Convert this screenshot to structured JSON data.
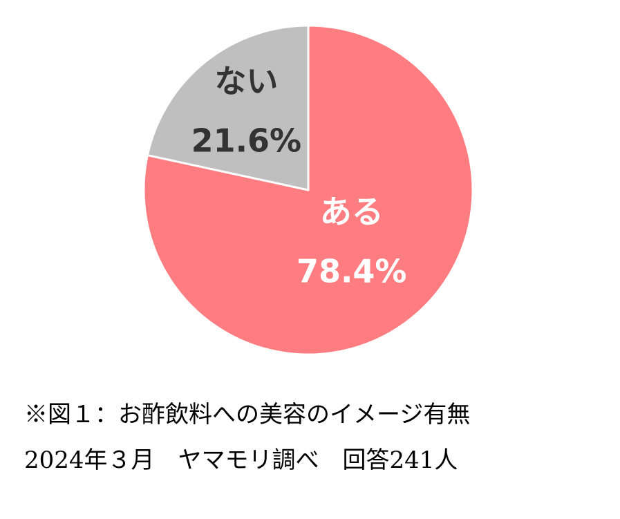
{
  "chart_data": {
    "type": "pie",
    "categories": [
      "ある",
      "ない"
    ],
    "values": [
      78.4,
      21.6
    ],
    "value_labels": [
      "78.4%",
      "21.6%"
    ],
    "colors": [
      "#FF7C80",
      "#BFBFBF"
    ],
    "label_colors": [
      "#FFFFFF",
      "#333333"
    ],
    "caption": [
      "※図１：お酢飲料への美容のイメージ有無",
      "2024年３月　ヤマモリ調べ　回答241人"
    ]
  }
}
